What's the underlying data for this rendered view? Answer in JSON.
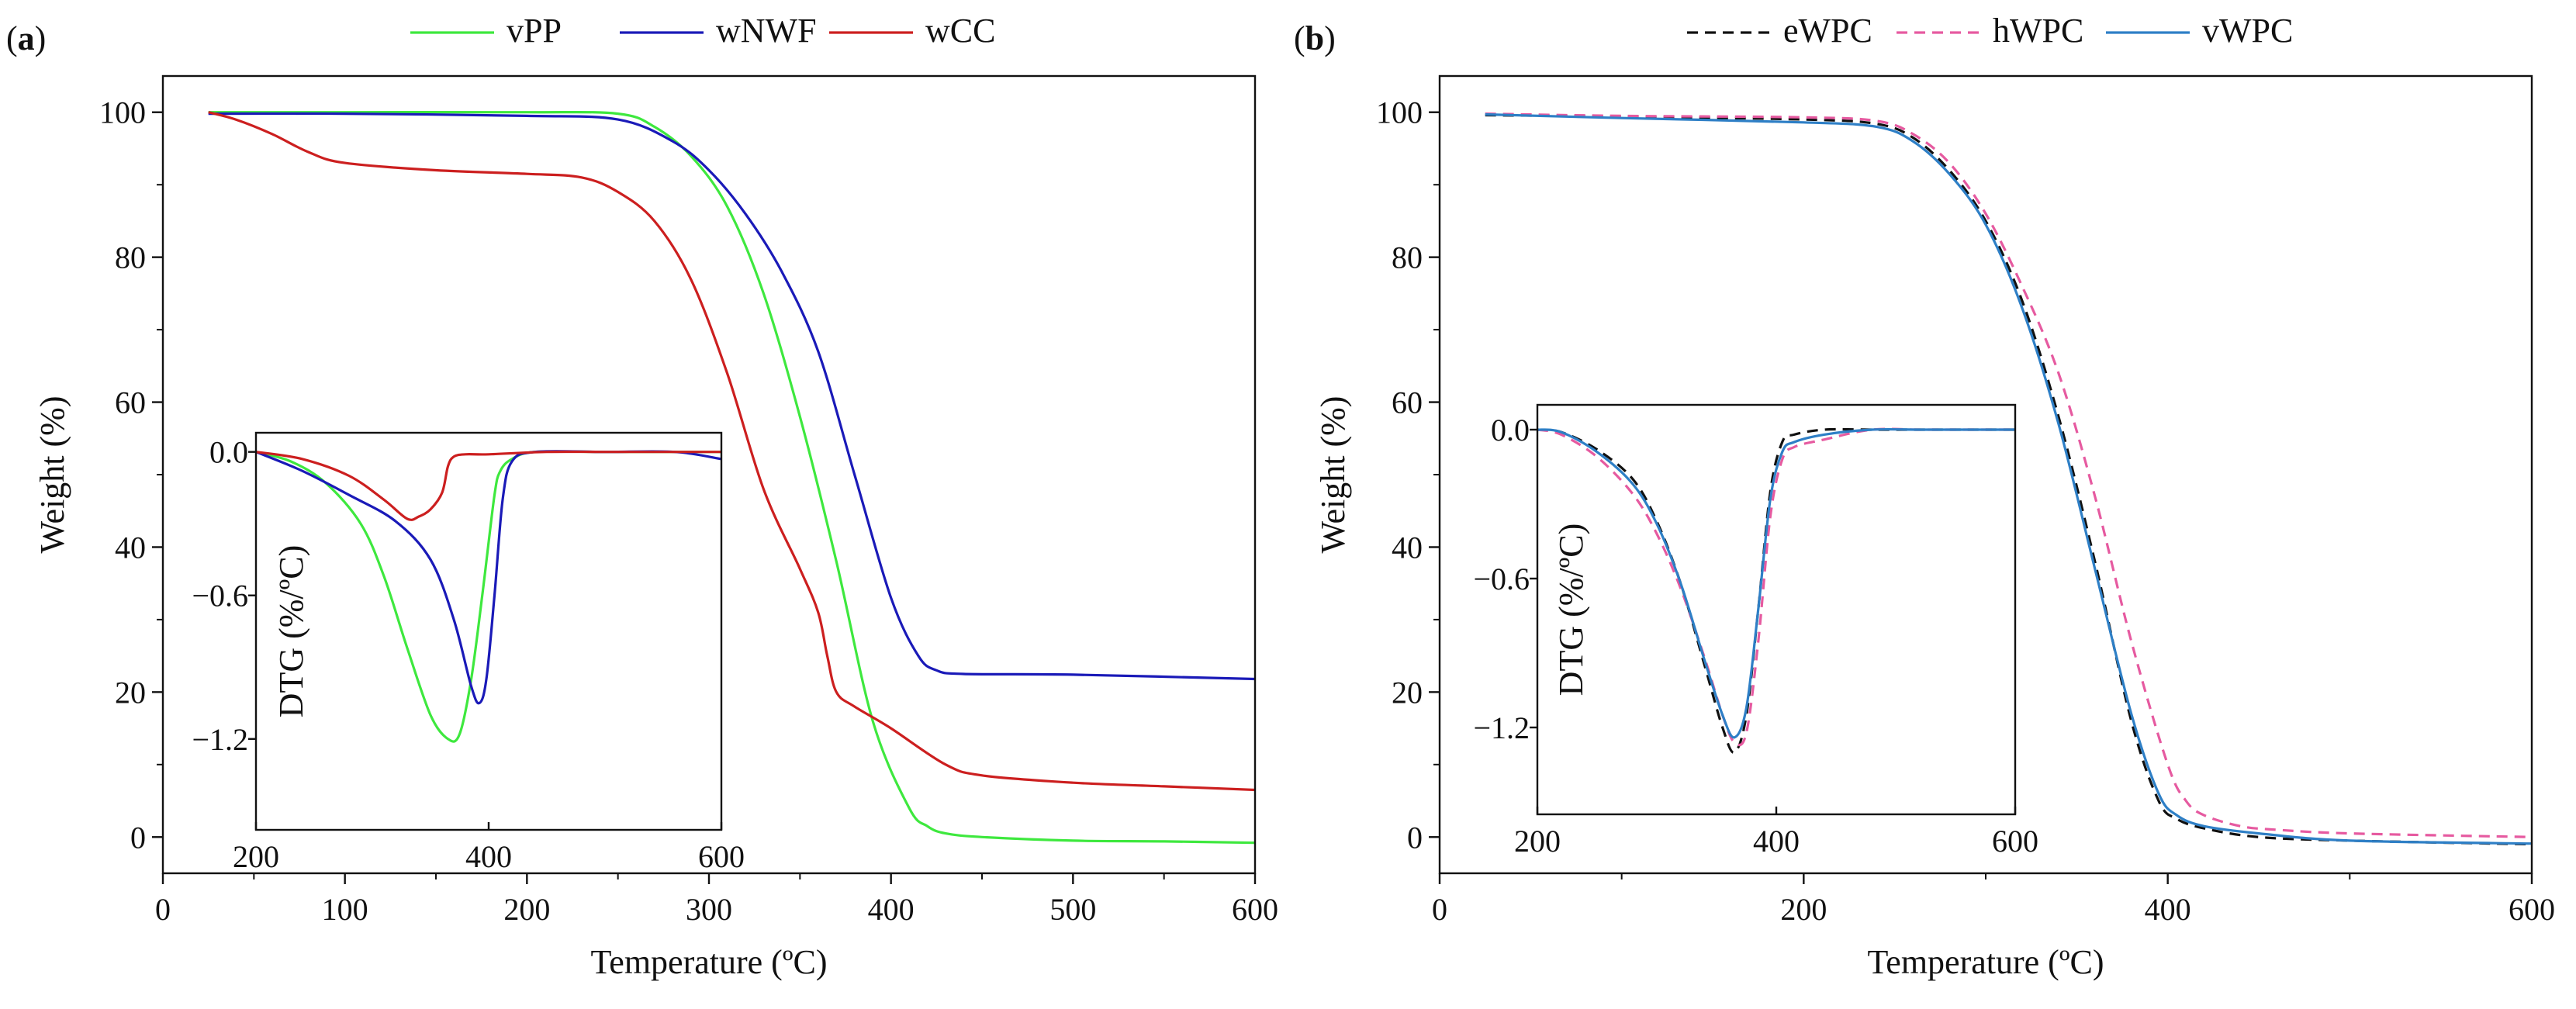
{
  "panel_a": {
    "label_open": "(",
    "label_letter": "a",
    "label_close": ")"
  },
  "panel_b": {
    "label_open": "(",
    "label_letter": "b",
    "label_close": ")"
  },
  "chart_data": [
    {
      "id": "a_main",
      "type": "line",
      "title": "",
      "xlabel": "Temperature (ºC)",
      "ylabel": "Weight (%)",
      "xlim": [
        0,
        600
      ],
      "ylim": [
        -5,
        105
      ],
      "xticks": [
        0,
        100,
        200,
        300,
        400,
        500,
        600
      ],
      "xtick_labels": [
        "0",
        "100",
        "200",
        "300",
        "400",
        "500",
        "600"
      ],
      "yticks": [
        0,
        20,
        40,
        60,
        80,
        100
      ],
      "ytick_labels": [
        "0",
        "20",
        "40",
        "60",
        "80",
        "100"
      ],
      "legend": [
        "vPP",
        "wNWF",
        "wCC"
      ],
      "legend_position": "top-center",
      "series": [
        {
          "name": "vPP",
          "color": "#3ee83e",
          "dash": "solid",
          "x": [
            25,
            100,
            200,
            250,
            270,
            290,
            310,
            330,
            350,
            370,
            390,
            410,
            420,
            430,
            450,
            500,
            550,
            600
          ],
          "y": [
            100,
            100,
            100,
            99.8,
            98,
            94,
            87,
            75,
            58,
            38,
            16,
            4,
            1.5,
            0.5,
            0,
            -0.5,
            -0.6,
            -0.8
          ]
        },
        {
          "name": "wNWF",
          "color": "#1a1ab8",
          "dash": "solid",
          "x": [
            25,
            100,
            200,
            250,
            280,
            300,
            320,
            340,
            360,
            380,
            400,
            415,
            425,
            440,
            500,
            600
          ],
          "y": [
            99.8,
            99.8,
            99.5,
            99,
            96,
            92,
            86,
            78,
            67,
            50,
            33,
            25,
            23,
            22.5,
            22.4,
            21.8
          ]
        },
        {
          "name": "wCC",
          "color": "#cc1f1f",
          "dash": "solid",
          "x": [
            25,
            40,
            60,
            80,
            100,
            150,
            200,
            230,
            250,
            270,
            290,
            310,
            330,
            350,
            360,
            365,
            370,
            380,
            400,
            430,
            450,
            500,
            550,
            600
          ],
          "y": [
            100,
            99,
            97,
            94.5,
            93,
            92,
            91.5,
            91,
            89,
            85,
            77,
            64,
            48,
            37,
            31,
            25,
            20,
            18,
            15,
            10,
            8.5,
            7.5,
            7,
            6.5
          ]
        }
      ]
    },
    {
      "id": "a_inset",
      "type": "line",
      "title": "",
      "xlabel": "",
      "ylabel": "DTG (%/ºC)",
      "xlim": [
        200,
        600
      ],
      "ylim": [
        -1.58,
        0.08
      ],
      "xticks": [
        200,
        400,
        600
      ],
      "xtick_labels": [
        "200",
        "400",
        "600"
      ],
      "yticks": [
        0,
        -0.6,
        -1.2
      ],
      "ytick_labels": [
        "0.0",
        "−0.6",
        "−1.2"
      ],
      "series": [
        {
          "name": "vPP",
          "color": "#3ee83e",
          "dash": "solid",
          "x": [
            200,
            230,
            260,
            290,
            310,
            330,
            350,
            365,
            375,
            385,
            395,
            405,
            410,
            420,
            440,
            500,
            560,
            600
          ],
          "y": [
            0,
            -0.04,
            -0.13,
            -0.3,
            -0.52,
            -0.82,
            -1.1,
            -1.2,
            -1.18,
            -0.95,
            -0.58,
            -0.18,
            -0.08,
            -0.03,
            0,
            0,
            0,
            0
          ]
        },
        {
          "name": "wNWF",
          "color": "#1a1ab8",
          "dash": "solid",
          "x": [
            200,
            240,
            280,
            320,
            350,
            370,
            385,
            392,
            398,
            405,
            412,
            420,
            440,
            500,
            560,
            600
          ],
          "y": [
            0,
            -0.08,
            -0.18,
            -0.29,
            -0.45,
            -0.7,
            -0.98,
            -1.05,
            -0.95,
            -0.6,
            -0.2,
            -0.04,
            0,
            0,
            0,
            -0.03
          ]
        },
        {
          "name": "wCC",
          "color": "#cc1f1f",
          "dash": "solid",
          "x": [
            200,
            240,
            280,
            310,
            330,
            340,
            350,
            360,
            365,
            370,
            380,
            400,
            450,
            500,
            560,
            600
          ],
          "y": [
            0,
            -0.03,
            -0.1,
            -0.2,
            -0.28,
            -0.27,
            -0.24,
            -0.17,
            -0.06,
            -0.02,
            -0.01,
            -0.01,
            0,
            0,
            0,
            0
          ]
        }
      ]
    },
    {
      "id": "b_main",
      "type": "line",
      "title": "",
      "xlabel": "Temperature (ºC)",
      "ylabel": "Weight (%)",
      "xlim": [
        0,
        600
      ],
      "ylim": [
        -5,
        105
      ],
      "xticks": [
        0,
        200,
        400,
        600
      ],
      "xtick_labels": [
        "0",
        "200",
        "400",
        "600"
      ],
      "yticks": [
        0,
        20,
        40,
        60,
        80,
        100
      ],
      "ytick_labels": [
        "0",
        "20",
        "40",
        "60",
        "80",
        "100"
      ],
      "legend": [
        "eWPC",
        "hWPC",
        "vWPC"
      ],
      "legend_position": "top-center",
      "series": [
        {
          "name": "eWPC",
          "color": "#111111",
          "dash": "dashed",
          "x": [
            25,
            100,
            200,
            240,
            260,
            280,
            300,
            320,
            340,
            360,
            380,
            395,
            405,
            420,
            450,
            500,
            600
          ],
          "y": [
            99.6,
            99.4,
            99,
            98.4,
            96.5,
            92,
            85,
            74,
            58,
            38,
            16,
            5,
            2.5,
            1.2,
            0,
            -0.5,
            -1
          ]
        },
        {
          "name": "hWPC",
          "color": "#e65aa0",
          "dash": "dashed",
          "x": [
            25,
            100,
            200,
            240,
            260,
            280,
            300,
            320,
            340,
            360,
            380,
            400,
            410,
            420,
            440,
            460,
            500,
            600
          ],
          "y": [
            99.8,
            99.5,
            99.3,
            98.8,
            97,
            93,
            86,
            76,
            64,
            47,
            27,
            10,
            5,
            3,
            1.5,
            1,
            0.5,
            0
          ]
        },
        {
          "name": "vWPC",
          "color": "#2e7fc6",
          "dash": "solid",
          "x": [
            25,
            100,
            200,
            240,
            260,
            280,
            300,
            320,
            340,
            360,
            380,
            395,
            405,
            420,
            450,
            500,
            600
          ],
          "y": [
            99.7,
            99.2,
            98.6,
            98,
            96,
            91.5,
            84.5,
            73,
            57,
            37,
            17,
            6,
            3,
            1.5,
            0.5,
            -0.5,
            -0.9
          ]
        }
      ]
    },
    {
      "id": "b_inset",
      "type": "line",
      "title": "",
      "xlabel": "",
      "ylabel": "DTG (%/ºC)",
      "xlim": [
        200,
        600
      ],
      "ylim": [
        -1.55,
        0.1
      ],
      "xticks": [
        200,
        400,
        600
      ],
      "xtick_labels": [
        "200",
        "400",
        "600"
      ],
      "yticks": [
        0,
        -0.6,
        -1.2
      ],
      "ytick_labels": [
        "0.0",
        "−0.6",
        "−1.2"
      ],
      "series": [
        {
          "name": "eWPC",
          "color": "#111111",
          "dash": "dashed",
          "x": [
            200,
            220,
            250,
            280,
            300,
            320,
            340,
            355,
            365,
            375,
            385,
            395,
            405,
            415,
            440,
            480,
            520,
            560,
            600
          ],
          "y": [
            0,
            -0.01,
            -0.08,
            -0.2,
            -0.37,
            -0.62,
            -0.95,
            -1.2,
            -1.3,
            -1.15,
            -0.72,
            -0.25,
            -0.05,
            -0.02,
            0,
            0,
            0,
            0,
            0
          ]
        },
        {
          "name": "hWPC",
          "color": "#e65aa0",
          "dash": "dashed",
          "x": [
            200,
            220,
            250,
            280,
            300,
            320,
            340,
            355,
            365,
            375,
            385,
            395,
            405,
            415,
            440,
            480,
            520,
            560,
            600
          ],
          "y": [
            0,
            -0.02,
            -0.11,
            -0.26,
            -0.42,
            -0.64,
            -0.92,
            -1.15,
            -1.26,
            -1.22,
            -0.85,
            -0.35,
            -0.12,
            -0.07,
            -0.04,
            0,
            0,
            0,
            0
          ]
        },
        {
          "name": "vWPC",
          "color": "#2e7fc6",
          "dash": "solid",
          "x": [
            200,
            220,
            250,
            280,
            300,
            320,
            340,
            355,
            365,
            375,
            385,
            395,
            405,
            415,
            440,
            480,
            520,
            560,
            600
          ],
          "y": [
            0,
            -0.01,
            -0.09,
            -0.22,
            -0.38,
            -0.62,
            -0.93,
            -1.15,
            -1.24,
            -1.12,
            -0.72,
            -0.28,
            -0.09,
            -0.05,
            -0.02,
            0,
            0,
            0,
            0
          ]
        }
      ]
    }
  ]
}
